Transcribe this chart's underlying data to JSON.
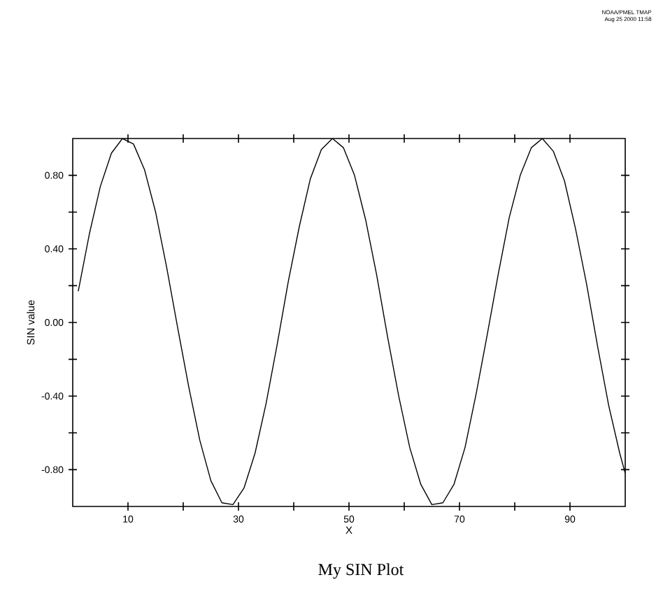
{
  "chart_data": {
    "type": "line",
    "title": "My SIN Plot",
    "xlabel": "X",
    "ylabel": "SIN value",
    "annotations": [
      "NOAA/PMEL TMAP",
      "Aug 25 2000 11:58"
    ],
    "x": [
      1,
      3,
      5,
      7,
      9,
      11,
      13,
      15,
      17,
      19,
      21,
      23,
      25,
      27,
      29,
      31,
      33,
      35,
      37,
      39,
      41,
      43,
      45,
      47,
      49,
      51,
      53,
      55,
      57,
      59,
      61,
      63,
      65,
      67,
      69,
      71,
      73,
      75,
      77,
      79,
      81,
      83,
      85,
      87,
      89,
      91,
      93,
      95,
      97,
      99,
      100
    ],
    "values": [
      0.17,
      0.48,
      0.74,
      0.92,
      1.0,
      0.97,
      0.83,
      0.6,
      0.3,
      -0.03,
      -0.35,
      -0.64,
      -0.86,
      -0.98,
      -0.99,
      -0.9,
      -0.71,
      -0.44,
      -0.12,
      0.22,
      0.52,
      0.78,
      0.94,
      1.0,
      0.95,
      0.8,
      0.56,
      0.26,
      -0.08,
      -0.4,
      -0.68,
      -0.88,
      -0.99,
      -0.98,
      -0.88,
      -0.68,
      -0.39,
      -0.07,
      0.26,
      0.57,
      0.8,
      0.95,
      1.0,
      0.93,
      0.77,
      0.51,
      0.21,
      -0.13,
      -0.45,
      -0.71,
      -0.82
    ],
    "color": "#000000",
    "xlim": [
      0,
      100
    ],
    "ylim": [
      -1,
      1
    ],
    "xticks": [
      10,
      {
        "value": 20,
        "label": null
      },
      30,
      {
        "value": 40,
        "label": null
      },
      50,
      {
        "value": 60,
        "label": null
      },
      70,
      {
        "value": 80,
        "label": null
      },
      90
    ],
    "yticks": [
      {
        "value": -0.8,
        "label": "-0.80"
      },
      {
        "value": -0.6,
        "label": null
      },
      {
        "value": -0.4,
        "label": "-0.40"
      },
      {
        "value": -0.2,
        "label": null
      },
      {
        "value": 0,
        "label": "0.00"
      },
      {
        "value": 0.2,
        "label": null
      },
      {
        "value": 0.4,
        "label": "0.40"
      },
      {
        "value": 0.6,
        "label": null
      },
      {
        "value": 0.8,
        "label": "0.80"
      }
    ],
    "grid": false,
    "marker": "none",
    "line_style": "solid"
  }
}
